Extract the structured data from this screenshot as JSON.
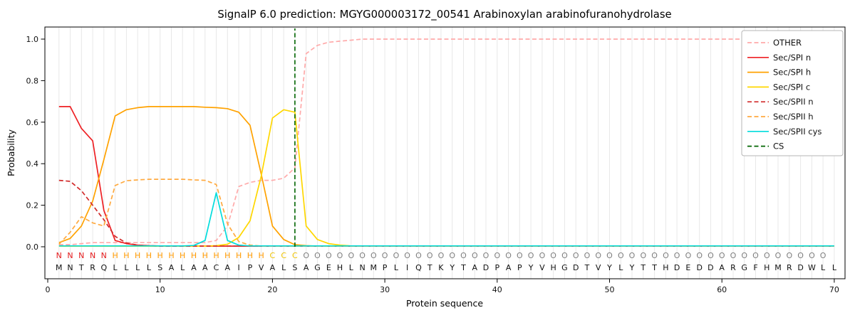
{
  "chart_data": {
    "type": "line",
    "title": "SignalP 6.0 prediction: MGYG000003172_00541 Arabinoxylan arabinofuranohydrolase",
    "xlabel": "Protein sequence",
    "ylabel": "Probability",
    "xticks": [
      0,
      10,
      20,
      30,
      40,
      50,
      60,
      70
    ],
    "yticks": [
      0.0,
      0.2,
      0.4,
      0.6,
      0.8,
      1.0
    ],
    "xlim": [
      -0.3,
      71
    ],
    "ylim": [
      -0.15,
      1.06
    ],
    "grid": "vertical-per-residue",
    "legend_position": "upper right",
    "sequence": "MNTRQLLLLSALAACAIPVALSAGEHLNMPLIQTKYTADPAPYVHGDTVYLYTTHDEDDARGFHMRDWLL",
    "region_labels": "NNNNNHHHHHHHHHHHHHHCCCOOOOOOOOOOOOOOOOOOOOOOOOOOOOOOOOOOOOOOOOOOOOOOO",
    "region_colors": {
      "N": "#e41a1c",
      "H": "#ff9900",
      "C": "#eec200",
      "O": "#7f7f7f"
    },
    "colors": {
      "grid": "#e8e8e8",
      "axis": "#000000",
      "cleavage_site": "#006400"
    },
    "cleavage_site_x": 22,
    "series": [
      {
        "name": "OTHER",
        "color": "#ffaaaa",
        "style": "dashed",
        "values": [
          0.01,
          0.01,
          0.015,
          0.02,
          0.02,
          0.02,
          0.02,
          0.02,
          0.02,
          0.02,
          0.02,
          0.02,
          0.02,
          0.02,
          0.03,
          0.1,
          0.29,
          0.31,
          0.32,
          0.32,
          0.33,
          0.38,
          0.93,
          0.97,
          0.985,
          0.99,
          0.995,
          1.0,
          1.0,
          1.0,
          1.0,
          1.0,
          1.0,
          1.0,
          1.0,
          1.0,
          1.0,
          1.0,
          1.0,
          1.0,
          1.0,
          1.0,
          1.0,
          1.0,
          1.0,
          1.0,
          1.0,
          1.0,
          1.0,
          1.0,
          1.0,
          1.0,
          1.0,
          1.0,
          1.0,
          1.0,
          1.0,
          1.0,
          1.0,
          1.0,
          1.0,
          1.0,
          1.0,
          1.0,
          1.0,
          1.0,
          1.0,
          1.0,
          1.0,
          1.0
        ]
      },
      {
        "name": "Sec/SPI n",
        "color": "#ee2024",
        "style": "solid",
        "values": [
          0.675,
          0.675,
          0.57,
          0.51,
          0.175,
          0.03,
          0.015,
          0.008,
          0.005,
          0.004,
          0.003,
          0.003,
          0.003,
          0.003,
          0.003,
          0.003,
          0.003,
          0.003,
          0.003,
          0.003,
          0.003,
          0.003,
          0.003,
          0.003,
          0.003,
          0.003,
          0.003,
          0.003,
          0.003,
          0.003,
          0.003,
          0.003,
          0.003,
          0.003,
          0.003,
          0.003,
          0.003,
          0.003,
          0.003,
          0.003,
          0.003,
          0.003,
          0.003,
          0.003,
          0.003,
          0.003,
          0.003,
          0.003,
          0.003,
          0.003,
          0.003,
          0.003,
          0.003,
          0.003,
          0.003,
          0.003,
          0.003,
          0.003,
          0.003,
          0.003,
          0.003,
          0.003,
          0.003,
          0.003,
          0.003,
          0.003,
          0.003,
          0.003,
          0.003,
          0.003
        ]
      },
      {
        "name": "Sec/SPI h",
        "color": "#ffa200",
        "style": "solid",
        "values": [
          0.02,
          0.04,
          0.1,
          0.22,
          0.42,
          0.63,
          0.66,
          0.67,
          0.675,
          0.675,
          0.675,
          0.675,
          0.675,
          0.672,
          0.67,
          0.665,
          0.648,
          0.585,
          0.35,
          0.1,
          0.035,
          0.01,
          0.005,
          0.003,
          0.003,
          0.003,
          0.003,
          0.003,
          0.003,
          0.003,
          0.003,
          0.003,
          0.003,
          0.003,
          0.003,
          0.003,
          0.003,
          0.003,
          0.003,
          0.003,
          0.003,
          0.003,
          0.003,
          0.003,
          0.003,
          0.003,
          0.003,
          0.003,
          0.003,
          0.003,
          0.003,
          0.003,
          0.003,
          0.003,
          0.003,
          0.003,
          0.003,
          0.003,
          0.003,
          0.003,
          0.003,
          0.003,
          0.003,
          0.003,
          0.003,
          0.003,
          0.003,
          0.003,
          0.003,
          0.003
        ]
      },
      {
        "name": "Sec/SPI c",
        "color": "#ffd700",
        "style": "solid",
        "values": [
          0.003,
          0.003,
          0.003,
          0.003,
          0.003,
          0.003,
          0.003,
          0.003,
          0.003,
          0.003,
          0.003,
          0.003,
          0.003,
          0.003,
          0.005,
          0.012,
          0.045,
          0.125,
          0.34,
          0.62,
          0.66,
          0.648,
          0.1,
          0.035,
          0.015,
          0.008,
          0.004,
          0.004,
          0.004,
          0.004,
          0.004,
          0.004,
          0.004,
          0.004,
          0.004,
          0.004,
          0.004,
          0.004,
          0.004,
          0.004,
          0.004,
          0.004,
          0.004,
          0.004,
          0.004,
          0.004,
          0.004,
          0.004,
          0.004,
          0.004,
          0.004,
          0.004,
          0.004,
          0.004,
          0.004,
          0.004,
          0.004,
          0.004,
          0.004,
          0.004,
          0.004,
          0.004,
          0.004,
          0.004,
          0.004,
          0.004,
          0.004,
          0.004,
          0.004,
          0.004
        ]
      },
      {
        "name": "Sec/SPII n",
        "color": "#d22b2b",
        "style": "dashed",
        "values": [
          0.32,
          0.315,
          0.27,
          0.2,
          0.13,
          0.05,
          0.018,
          0.008,
          0.005,
          0.003,
          0.003,
          0.003,
          0.003,
          0.003,
          0.003,
          0.003,
          0.003,
          0.003,
          0.003,
          0.003,
          0.003,
          0.003,
          0.003,
          0.003,
          0.003,
          0.003,
          0.003,
          0.003,
          0.003,
          0.003,
          0.003,
          0.003,
          0.003,
          0.003,
          0.003,
          0.003,
          0.003,
          0.003,
          0.003,
          0.003,
          0.003,
          0.003,
          0.003,
          0.003,
          0.003,
          0.003,
          0.003,
          0.003,
          0.003,
          0.003,
          0.003,
          0.003,
          0.003,
          0.003,
          0.003,
          0.003,
          0.003,
          0.003,
          0.003,
          0.003,
          0.003,
          0.003,
          0.003,
          0.003,
          0.003,
          0.003,
          0.003,
          0.003,
          0.003,
          0.003
        ]
      },
      {
        "name": "Sec/SPII h",
        "color": "#ffaa40",
        "style": "dashed",
        "values": [
          0.012,
          0.07,
          0.145,
          0.115,
          0.1,
          0.295,
          0.318,
          0.322,
          0.325,
          0.325,
          0.325,
          0.325,
          0.322,
          0.32,
          0.3,
          0.11,
          0.025,
          0.008,
          0.003,
          0.003,
          0.003,
          0.003,
          0.003,
          0.003,
          0.003,
          0.003,
          0.003,
          0.003,
          0.003,
          0.003,
          0.003,
          0.003,
          0.003,
          0.003,
          0.003,
          0.003,
          0.003,
          0.003,
          0.003,
          0.003,
          0.003,
          0.003,
          0.003,
          0.003,
          0.003,
          0.003,
          0.003,
          0.003,
          0.003,
          0.003,
          0.003,
          0.003,
          0.003,
          0.003,
          0.003,
          0.003,
          0.003,
          0.003,
          0.003,
          0.003,
          0.003,
          0.003,
          0.003,
          0.003,
          0.003,
          0.003,
          0.003,
          0.003,
          0.003,
          0.003
        ]
      },
      {
        "name": "Sec/SPII cys",
        "color": "#00dcdc",
        "style": "solid",
        "values": [
          0.004,
          0.004,
          0.004,
          0.004,
          0.004,
          0.004,
          0.004,
          0.004,
          0.004,
          0.004,
          0.004,
          0.004,
          0.006,
          0.03,
          0.26,
          0.03,
          0.008,
          0.004,
          0.004,
          0.004,
          0.004,
          0.004,
          0.004,
          0.004,
          0.004,
          0.004,
          0.004,
          0.004,
          0.004,
          0.004,
          0.004,
          0.004,
          0.004,
          0.004,
          0.004,
          0.004,
          0.004,
          0.004,
          0.004,
          0.004,
          0.004,
          0.004,
          0.004,
          0.004,
          0.004,
          0.004,
          0.004,
          0.004,
          0.004,
          0.004,
          0.004,
          0.004,
          0.004,
          0.004,
          0.004,
          0.004,
          0.004,
          0.004,
          0.004,
          0.004,
          0.004,
          0.004,
          0.004,
          0.004,
          0.004,
          0.004,
          0.004,
          0.004,
          0.004,
          0.004
        ]
      },
      {
        "name": "CS",
        "type": "vline",
        "x": 22,
        "color": "#006400",
        "style": "dashed"
      }
    ]
  }
}
